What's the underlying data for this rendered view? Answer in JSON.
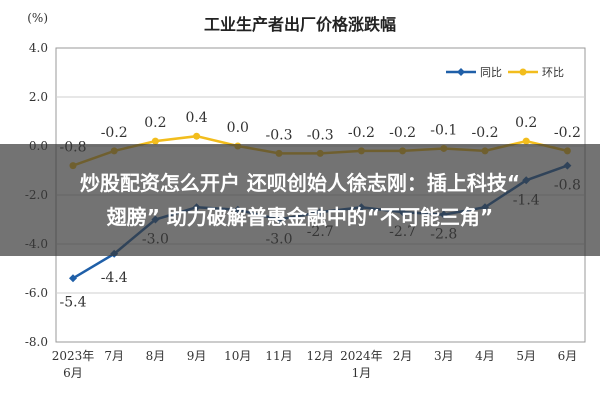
{
  "chart_data": {
    "type": "line",
    "title": "工业生产者出厂价格涨跌幅",
    "ylabel": "(%)",
    "ylim": [
      -8.0,
      4.0
    ],
    "yticks": [
      "4.0",
      "2.0",
      "0.0",
      "-2.0",
      "-4.0",
      "-6.0",
      "-8.0"
    ],
    "ytick_values": [
      4,
      2,
      0,
      -2,
      -4,
      -6,
      -8
    ],
    "grid": true,
    "legend_position": "top-right",
    "categories": [
      [
        "2023年",
        "6月"
      ],
      [
        "7月"
      ],
      [
        "8月"
      ],
      [
        "9月"
      ],
      [
        "10月"
      ],
      [
        "11月"
      ],
      [
        "12月"
      ],
      [
        "2024年",
        "1月"
      ],
      [
        "2月"
      ],
      [
        "3月"
      ],
      [
        "4月"
      ],
      [
        "5月"
      ],
      [
        "6月"
      ]
    ],
    "series": [
      {
        "name": "同比",
        "color": "#1f5fa8",
        "values": [
          -5.4,
          -4.4,
          -3.0,
          -2.5,
          -2.6,
          -3.0,
          -2.7,
          -2.5,
          -2.7,
          -2.8,
          -2.5,
          -1.4,
          -0.8
        ],
        "labels": [
          "-5.4",
          "-4.4",
          "-3.0",
          "",
          "",
          "-3.0",
          "-2.7",
          "",
          "-2.7",
          "-2.8",
          "",
          "-1.4",
          "-0.8"
        ]
      },
      {
        "name": "环比",
        "color": "#f2bd1d",
        "values": [
          -0.8,
          -0.2,
          0.2,
          0.4,
          0.0,
          -0.3,
          -0.3,
          -0.2,
          -0.2,
          -0.1,
          -0.2,
          0.2,
          -0.2
        ],
        "labels": [
          "-0.8",
          "-0.2",
          "0.2",
          "0.4",
          "0.0",
          "-0.3",
          "-0.3",
          "-0.2",
          "-0.2",
          "-0.1",
          "-0.2",
          "0.2",
          "-0.2"
        ]
      }
    ]
  },
  "banner": {
    "line1": "炒股配资怎么开户 还呗创始人徐志刚：插上科技“",
    "line2": "翅膀” 助力破解普惠金融中的“不可能三角”"
  }
}
